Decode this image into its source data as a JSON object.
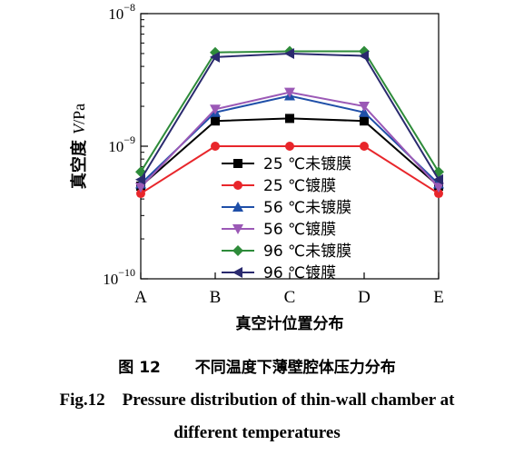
{
  "chart_data": {
    "type": "line",
    "y_scale": "log",
    "ylim": [
      1e-10,
      1e-08
    ],
    "y_ticks": [
      {
        "value": 1e-10,
        "base": "10",
        "exp": "−10"
      },
      {
        "value": 1e-09,
        "base": "10",
        "exp": "−9"
      },
      {
        "value": 1e-08,
        "base": "10",
        "exp": "−8"
      }
    ],
    "categories": [
      "A",
      "B",
      "C",
      "D",
      "E"
    ],
    "xlabel": "真空计位置分布",
    "ylabel_prefix": "真空度 ",
    "ylabel_var": "V",
    "ylabel_unit": "/Pa",
    "legend_position": "center",
    "series": [
      {
        "name": "25 ℃未镀膜",
        "color": "#000000",
        "marker": "square",
        "values": [
          5e-10,
          1.55e-09,
          1.62e-09,
          1.55e-09,
          5e-10
        ]
      },
      {
        "name": "25 ℃镀膜",
        "color": "#e8262b",
        "marker": "circle",
        "values": [
          4.4e-10,
          1e-09,
          1e-09,
          1e-09,
          4.4e-10
        ]
      },
      {
        "name": "56 ℃未镀膜",
        "color": "#1f4fa8",
        "marker": "triangle-up",
        "values": [
          5.2e-10,
          1.8e-09,
          2.4e-09,
          1.8e-09,
          5.2e-10
        ]
      },
      {
        "name": "56 ℃镀膜",
        "color": "#9b59b6",
        "marker": "triangle-down",
        "values": [
          4.9e-10,
          1.9e-09,
          2.55e-09,
          2e-09,
          4.9e-10
        ]
      },
      {
        "name": "96 ℃未镀膜",
        "color": "#2e8b3a",
        "marker": "diamond",
        "values": [
          6.4e-10,
          5.1e-09,
          5.2e-09,
          5.2e-09,
          6.4e-10
        ]
      },
      {
        "name": "96 ℃镀膜",
        "color": "#2a2a6e",
        "marker": "triangle-left",
        "values": [
          5.6e-10,
          4.7e-09,
          5e-09,
          4.8e-09,
          5.6e-10
        ]
      }
    ]
  },
  "caption": {
    "cn_num": "图 12",
    "cn_text": "不同温度下薄壁腔体压力分布",
    "en_line1": "Fig.12    Pressure distribution of thin-wall chamber at",
    "en_line2": "different temperatures"
  }
}
